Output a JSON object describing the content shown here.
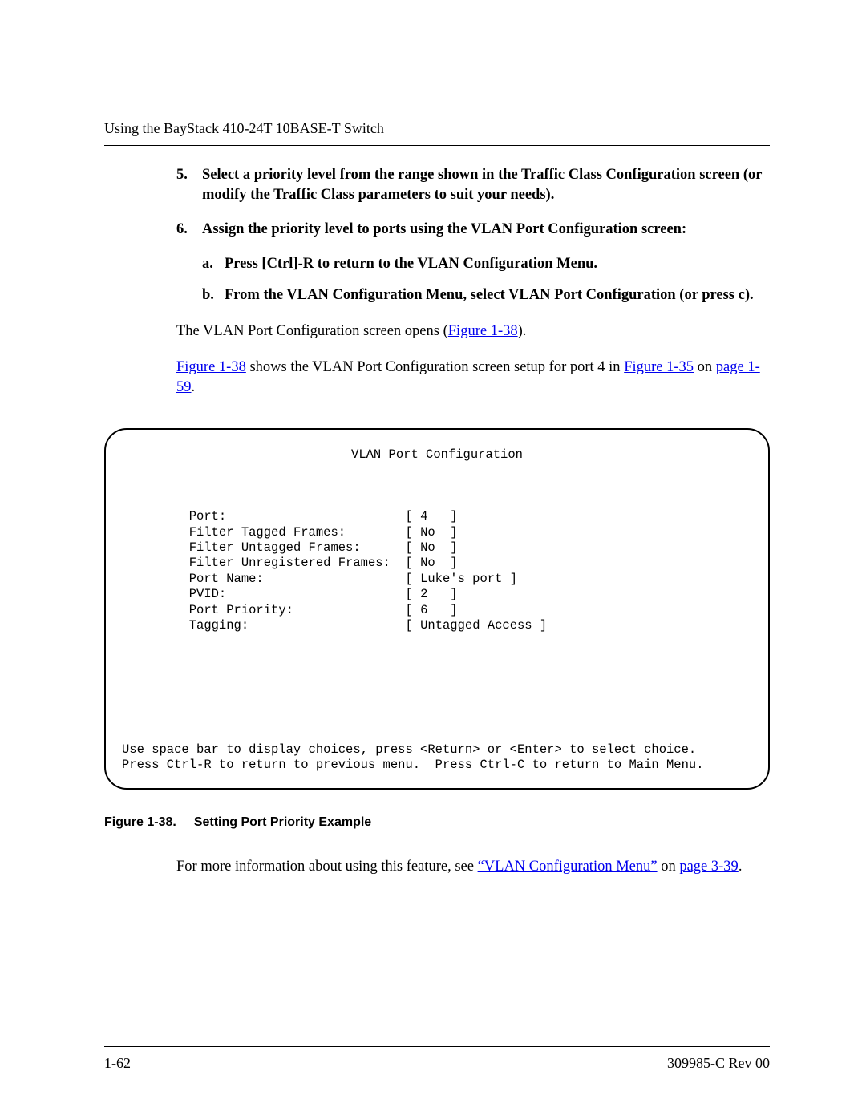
{
  "header": {
    "running_title": "Using the BayStack 410-24T 10BASE-T Switch"
  },
  "steps": {
    "s5": {
      "num": "5.",
      "text": "Select a priority level from the range shown in the Traffic Class Configuration screen (or modify the Traffic Class parameters to suit your needs)."
    },
    "s6": {
      "num": "6.",
      "text": "Assign the priority level to ports using the VLAN Port Configuration screen:"
    },
    "s6a": {
      "letter": "a.",
      "text": "Press [Ctrl]-R to return to the VLAN Configuration Menu."
    },
    "s6b": {
      "letter": "b.",
      "text": "From the VLAN Configuration Menu, select VLAN Port Configuration (or press c)."
    }
  },
  "body": {
    "opens_before": "The VLAN Port Configuration screen opens (",
    "opens_link": "Figure 1-38",
    "opens_after": ").",
    "shows_link1": "Figure 1-38",
    "shows_mid": " shows the VLAN Port Configuration screen setup for port 4 in ",
    "shows_link2": "Figure 1-35",
    "shows_on": " on ",
    "shows_link3": "page 1-59",
    "shows_end": "."
  },
  "console": {
    "title": "VLAN Port Configuration",
    "rows": {
      "port_label": "Port:",
      "port_val": "[ 4   ]",
      "ftf_label": "Filter Tagged Frames:",
      "ftf_val": "[ No  ]",
      "fuf_label": "Filter Untagged Frames:",
      "fuf_val": "[ No  ]",
      "fur_label": "Filter Unregistered Frames:",
      "fur_val": "[ No  ]",
      "pname_label": "Port Name:",
      "pname_val": "[ Luke's port ]",
      "pvid_label": "PVID:",
      "pvid_val": "[ 2   ]",
      "ppri_label": "Port Priority:",
      "ppri_val": "[ 6   ]",
      "tag_label": "Tagging:",
      "tag_val": "[ Untagged Access ]"
    },
    "help1": "Use space bar to display choices, press <Return> or <Enter> to select choice.",
    "help2": "Press Ctrl-R to return to previous menu.  Press Ctrl-C to return to Main Menu."
  },
  "caption": {
    "fig": "Figure 1-38.",
    "title": "Setting Port Priority Example"
  },
  "more_info": {
    "before": "For more information about using this feature, see ",
    "link1": "“VLAN Configuration Menu”",
    "mid": " on ",
    "link2": "page 3-39",
    "after": "."
  },
  "footer": {
    "page": "1-62",
    "doc": "309985-C Rev 00"
  }
}
